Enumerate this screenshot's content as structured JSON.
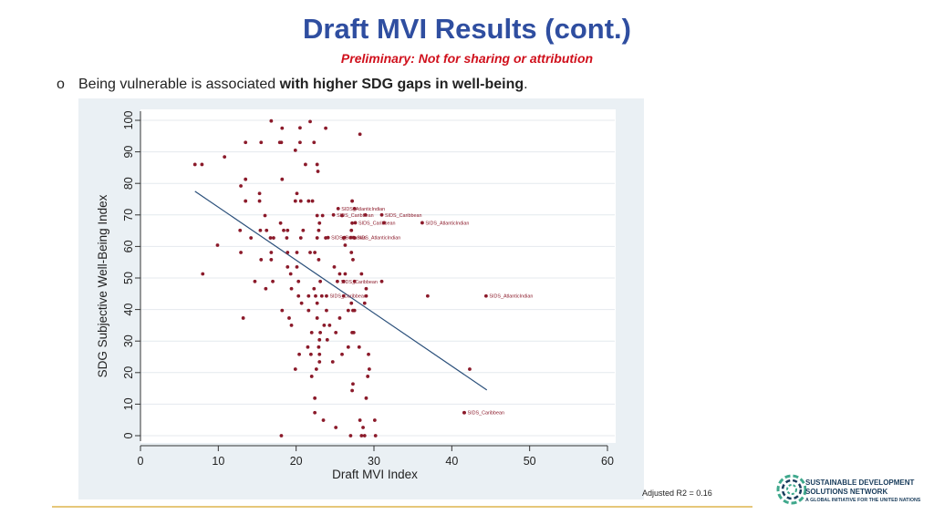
{
  "header": {
    "title": "Draft MVI Results (cont.)",
    "subtitle": "Preliminary: Not for sharing or attribution"
  },
  "bullet": {
    "mark": "o",
    "text_plain": "Being vulnerable is associated ",
    "text_bold": "with higher SDG gaps in well-being",
    "text_end": "."
  },
  "note": {
    "adjusted_r2": "Adjusted R2 = 0.16"
  },
  "logo": {
    "line1": "SUSTAINABLE DEVELOPMENT",
    "line2": "SOLUTIONS NETWORK",
    "line3": "A GLOBAL INITIATIVE FOR THE UNITED NATIONS",
    "icon": "sdsn-ring-icon",
    "color": "#1a3d5c",
    "accent": "#3fa88c"
  },
  "colors": {
    "title": "#2f4ea0",
    "subtitle": "#d0101c",
    "points": "#8b1a2a",
    "fit_line": "#2a4f7a",
    "panel": "#eaf0f4",
    "rule": "#e6c77a"
  },
  "chart_data": {
    "type": "scatter",
    "xlabel": "Draft MVI Index",
    "ylabel": "SDG Subjective Well-Being Index",
    "xlim": [
      0,
      60
    ],
    "ylim": [
      0,
      100
    ],
    "xticks": [
      "0",
      "10",
      "20",
      "30",
      "40",
      "50",
      "60"
    ],
    "yticks": [
      "0",
      "10",
      "20",
      "30",
      "40",
      "50",
      "60",
      "70",
      "80",
      "90",
      "100"
    ],
    "grid": "horizontal",
    "fit_line": {
      "x": [
        7,
        44.5
      ],
      "y": [
        77.5,
        14.5
      ]
    },
    "points": [
      [
        16.8,
        99.8
      ],
      [
        18.2,
        97.5
      ],
      [
        20.5,
        97.6
      ],
      [
        21.8,
        99.6
      ],
      [
        23.8,
        97.5
      ],
      [
        28.2,
        95.6
      ],
      [
        13.5,
        93.0
      ],
      [
        15.5,
        93.0
      ],
      [
        17.9,
        93.0
      ],
      [
        18.1,
        93.0
      ],
      [
        20.5,
        93.0
      ],
      [
        22.3,
        93.0
      ],
      [
        19.9,
        90.5
      ],
      [
        10.8,
        88.4
      ],
      [
        7.0,
        86.0
      ],
      [
        7.9,
        86.0
      ],
      [
        21.2,
        86.0
      ],
      [
        22.7,
        86.0
      ],
      [
        22.8,
        83.8
      ],
      [
        13.5,
        81.3
      ],
      [
        18.2,
        81.3
      ],
      [
        12.9,
        79.2
      ],
      [
        15.3,
        76.8
      ],
      [
        20.1,
        76.8
      ],
      [
        13.5,
        74.4
      ],
      [
        15.3,
        74.4
      ],
      [
        19.9,
        74.4
      ],
      [
        20.6,
        74.4
      ],
      [
        21.6,
        74.4
      ],
      [
        22.1,
        74.4
      ],
      [
        27.2,
        74.4
      ],
      [
        16.0,
        69.8
      ],
      [
        22.7,
        69.8
      ],
      [
        23.4,
        69.8
      ],
      [
        25.9,
        69.8
      ],
      [
        18.0,
        67.4
      ],
      [
        23.0,
        67.4
      ],
      [
        27.2,
        67.4
      ],
      [
        12.8,
        65.1
      ],
      [
        15.4,
        65.1
      ],
      [
        16.2,
        65.1
      ],
      [
        18.4,
        65.1
      ],
      [
        18.9,
        65.1
      ],
      [
        20.9,
        65.1
      ],
      [
        22.9,
        65.1
      ],
      [
        27.1,
        65.1
      ],
      [
        14.2,
        62.7
      ],
      [
        16.7,
        62.7
      ],
      [
        17.1,
        62.7
      ],
      [
        18.8,
        62.7
      ],
      [
        20.6,
        62.7
      ],
      [
        22.7,
        62.7
      ],
      [
        23.8,
        62.7
      ],
      [
        26.1,
        62.7
      ],
      [
        27.5,
        62.7
      ],
      [
        9.9,
        60.4
      ],
      [
        26.3,
        60.4
      ],
      [
        12.9,
        58.1
      ],
      [
        16.8,
        58.1
      ],
      [
        18.9,
        58.1
      ],
      [
        20.1,
        58.1
      ],
      [
        21.8,
        58.1
      ],
      [
        22.4,
        58.1
      ],
      [
        27.1,
        58.1
      ],
      [
        15.5,
        55.8
      ],
      [
        16.8,
        55.8
      ],
      [
        22.9,
        55.8
      ],
      [
        27.3,
        55.8
      ],
      [
        18.9,
        53.5
      ],
      [
        20.1,
        53.5
      ],
      [
        24.9,
        53.5
      ],
      [
        8.0,
        51.3
      ],
      [
        19.3,
        51.3
      ],
      [
        25.6,
        51.3
      ],
      [
        26.3,
        51.3
      ],
      [
        28.4,
        51.3
      ],
      [
        14.7,
        48.9
      ],
      [
        17.0,
        48.9
      ],
      [
        20.3,
        48.9
      ],
      [
        23.1,
        48.9
      ],
      [
        26.1,
        48.9
      ],
      [
        27.5,
        48.9
      ],
      [
        31.0,
        48.9
      ],
      [
        16.1,
        46.6
      ],
      [
        19.4,
        46.6
      ],
      [
        22.3,
        46.6
      ],
      [
        29.0,
        46.6
      ],
      [
        20.3,
        44.3
      ],
      [
        21.6,
        44.3
      ],
      [
        22.5,
        44.3
      ],
      [
        23.3,
        44.3
      ],
      [
        26.1,
        44.3
      ],
      [
        29.0,
        44.3
      ],
      [
        36.9,
        44.3
      ],
      [
        20.7,
        42.0
      ],
      [
        22.7,
        42.0
      ],
      [
        27.1,
        42.0
      ],
      [
        28.8,
        42.0
      ],
      [
        18.2,
        39.7
      ],
      [
        21.6,
        39.7
      ],
      [
        23.9,
        39.7
      ],
      [
        26.7,
        39.7
      ],
      [
        27.3,
        39.7
      ],
      [
        27.5,
        39.7
      ],
      [
        13.2,
        37.3
      ],
      [
        19.1,
        37.3
      ],
      [
        22.7,
        37.3
      ],
      [
        25.6,
        37.3
      ],
      [
        19.4,
        35.0
      ],
      [
        23.6,
        35.0
      ],
      [
        24.3,
        35.0
      ],
      [
        22.0,
        32.7
      ],
      [
        23.1,
        32.7
      ],
      [
        25.1,
        32.7
      ],
      [
        27.2,
        32.7
      ],
      [
        27.4,
        32.7
      ],
      [
        23.0,
        30.4
      ],
      [
        24.0,
        30.4
      ],
      [
        21.5,
        28.1
      ],
      [
        22.9,
        28.1
      ],
      [
        26.7,
        28.1
      ],
      [
        28.1,
        28.1
      ],
      [
        20.4,
        25.8
      ],
      [
        21.9,
        25.8
      ],
      [
        23.0,
        25.8
      ],
      [
        25.9,
        25.8
      ],
      [
        29.3,
        25.8
      ],
      [
        23.0,
        23.4
      ],
      [
        24.7,
        23.4
      ],
      [
        19.9,
        21.1
      ],
      [
        22.6,
        21.1
      ],
      [
        29.4,
        21.1
      ],
      [
        42.3,
        21.1
      ],
      [
        22.0,
        18.8
      ],
      [
        29.2,
        18.8
      ],
      [
        27.3,
        16.4
      ],
      [
        27.2,
        14.3
      ],
      [
        22.4,
        11.9
      ],
      [
        29.0,
        11.9
      ],
      [
        22.4,
        7.3
      ],
      [
        41.6,
        7.3
      ],
      [
        23.5,
        4.9
      ],
      [
        28.2,
        4.9
      ],
      [
        30.1,
        4.9
      ],
      [
        25.1,
        2.6
      ],
      [
        28.6,
        2.6
      ],
      [
        18.1,
        0.0
      ],
      [
        27.0,
        0.0
      ],
      [
        28.4,
        0.0
      ],
      [
        28.8,
        0.0
      ],
      [
        30.2,
        0.0
      ]
    ],
    "labeled_points": [
      {
        "x": 25.4,
        "y": 72.0,
        "label": "SIDS_AtlanticIndian"
      },
      {
        "x": 27.5,
        "y": 72.0,
        "label": ""
      },
      {
        "x": 24.8,
        "y": 70.0,
        "label": "SIDS_Caribbean"
      },
      {
        "x": 31.0,
        "y": 70.0,
        "label": "SIDS_Caribbean"
      },
      {
        "x": 28.9,
        "y": 70.0,
        "label": ""
      },
      {
        "x": 27.6,
        "y": 67.5,
        "label": "SIDS_Caribbean"
      },
      {
        "x": 31.3,
        "y": 67.5,
        "label": ""
      },
      {
        "x": 36.2,
        "y": 67.5,
        "label": "SIDS_AtlanticIndian"
      },
      {
        "x": 24.1,
        "y": 62.8,
        "label": "SIDS_Bahamas"
      },
      {
        "x": 26.2,
        "y": 62.8,
        "label": ""
      },
      {
        "x": 27.0,
        "y": 62.8,
        "label": ""
      },
      {
        "x": 27.4,
        "y": 62.8,
        "label": "SIDS_AtlanticIndian"
      },
      {
        "x": 25.3,
        "y": 48.9,
        "label": "SIDS_Caribbean"
      },
      {
        "x": 23.9,
        "y": 44.3,
        "label": "SIDS_Caribbean"
      },
      {
        "x": 44.4,
        "y": 44.3,
        "label": "SIDS_AtlanticIndian"
      },
      {
        "x": 41.6,
        "y": 7.3,
        "label": "SIDS_Caribbean"
      }
    ]
  }
}
